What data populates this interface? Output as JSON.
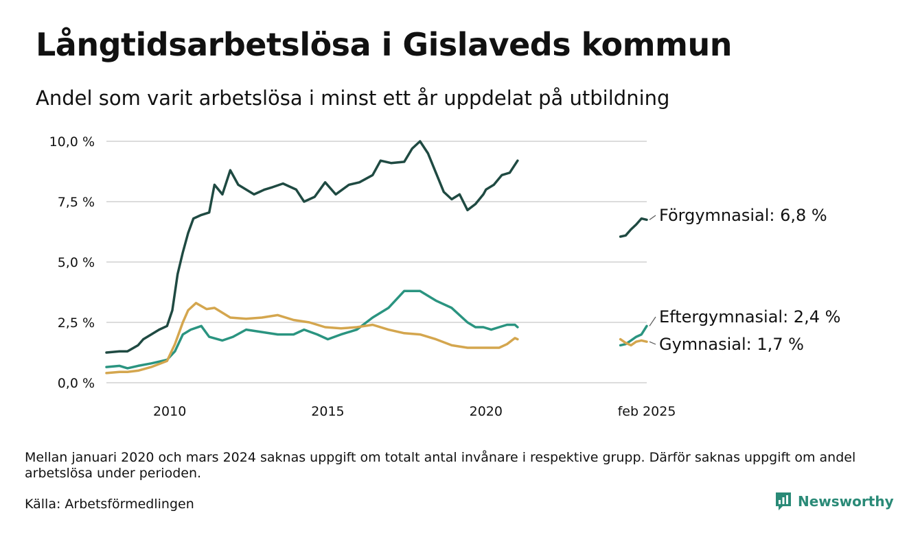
{
  "title": "Långtidsarbetslösa i Gislaveds kommun",
  "subtitle": "Andel som varit arbetslösa i minst ett år uppdelat på utbildning",
  "note": "Mellan januari 2020 och mars 2024 saknas uppgift om totalt antal invånare i respektive grupp. Därför saknas uppgift om andel arbetslösa under perioden.",
  "source": "Källa: Arbetsförmedlingen",
  "brand": {
    "name": "Newsworthy",
    "icon": "bar-chart-logo-icon",
    "color": "#2a8a77"
  },
  "chart_data": {
    "type": "line",
    "y_ticks": [
      "0,0 %",
      "2,5 %",
      "5,0 %",
      "7,5 %",
      "10,0 %"
    ],
    "y_tick_values": [
      0,
      2.5,
      5,
      7.5,
      10
    ],
    "x_ticks": [
      "2010",
      "2015",
      "2020",
      "feb 2025"
    ],
    "x_tick_values": [
      "2010-01",
      "2015-01",
      "2020-01",
      "2025-02"
    ],
    "x_range": [
      "2008-01",
      "2025-02"
    ],
    "ylim": [
      0,
      10
    ],
    "grid": "horizontal",
    "gap": "Mellan januari 2020 och mars 2024 saknas uppgift",
    "series": [
      {
        "name": "Förgymnasial",
        "end_label": "Förgymnasial: 6,8 %",
        "color": "#1f4a42",
        "points": [
          [
            "2008-01",
            1.25
          ],
          [
            "2008-06",
            1.3
          ],
          [
            "2008-09",
            1.3
          ],
          [
            "2009-01",
            1.55
          ],
          [
            "2009-03",
            1.8
          ],
          [
            "2009-06",
            2.0
          ],
          [
            "2009-09",
            2.2
          ],
          [
            "2009-12",
            2.35
          ],
          [
            "2010-02",
            3.0
          ],
          [
            "2010-04",
            4.5
          ],
          [
            "2010-06",
            5.4
          ],
          [
            "2010-08",
            6.2
          ],
          [
            "2010-10",
            6.8
          ],
          [
            "2011-01",
            6.95
          ],
          [
            "2011-04",
            7.05
          ],
          [
            "2011-06",
            8.2
          ],
          [
            "2011-09",
            7.8
          ],
          [
            "2011-12",
            8.8
          ],
          [
            "2012-03",
            8.2
          ],
          [
            "2012-06",
            8.0
          ],
          [
            "2012-09",
            7.8
          ],
          [
            "2013-01",
            8.0
          ],
          [
            "2013-04",
            8.1
          ],
          [
            "2013-08",
            8.25
          ],
          [
            "2014-01",
            8.0
          ],
          [
            "2014-04",
            7.5
          ],
          [
            "2014-08",
            7.7
          ],
          [
            "2014-12",
            8.3
          ],
          [
            "2015-04",
            7.8
          ],
          [
            "2015-09",
            8.2
          ],
          [
            "2016-01",
            8.3
          ],
          [
            "2016-06",
            8.6
          ],
          [
            "2016-09",
            9.2
          ],
          [
            "2017-01",
            9.1
          ],
          [
            "2017-06",
            9.15
          ],
          [
            "2017-09",
            9.7
          ],
          [
            "2017-12",
            10.0
          ],
          [
            "2018-03",
            9.5
          ],
          [
            "2018-06",
            8.7
          ],
          [
            "2018-09",
            7.9
          ],
          [
            "2018-12",
            7.6
          ],
          [
            "2019-03",
            7.8
          ],
          [
            "2019-06",
            7.15
          ],
          [
            "2019-09",
            7.4
          ],
          [
            "2019-12",
            7.8
          ],
          [
            "2020-01",
            8.0
          ],
          [
            "2020-04",
            8.2
          ],
          [
            "2020-07",
            8.6
          ],
          [
            "2020-10",
            8.7
          ],
          [
            "2021-01",
            9.2
          ],
          null,
          [
            "2024-04",
            6.05
          ],
          [
            "2024-06",
            6.1
          ],
          [
            "2024-08",
            6.35
          ],
          [
            "2024-10",
            6.55
          ],
          [
            "2024-12",
            6.8
          ],
          [
            "2025-02",
            6.75
          ]
        ]
      },
      {
        "name": "Eftergymnasial",
        "end_label": "Eftergymnasial: 2,4 %",
        "color": "#2a9480",
        "points": [
          [
            "2008-01",
            0.65
          ],
          [
            "2008-06",
            0.7
          ],
          [
            "2008-09",
            0.6
          ],
          [
            "2009-01",
            0.7
          ],
          [
            "2009-06",
            0.8
          ],
          [
            "2009-12",
            0.95
          ],
          [
            "2010-03",
            1.3
          ],
          [
            "2010-06",
            2.0
          ],
          [
            "2010-09",
            2.2
          ],
          [
            "2011-01",
            2.35
          ],
          [
            "2011-04",
            1.9
          ],
          [
            "2011-09",
            1.75
          ],
          [
            "2012-01",
            1.9
          ],
          [
            "2012-06",
            2.2
          ],
          [
            "2012-12",
            2.1
          ],
          [
            "2013-06",
            2.0
          ],
          [
            "2013-12",
            2.0
          ],
          [
            "2014-04",
            2.2
          ],
          [
            "2014-09",
            2.0
          ],
          [
            "2015-01",
            1.8
          ],
          [
            "2015-06",
            2.0
          ],
          [
            "2015-12",
            2.2
          ],
          [
            "2016-06",
            2.7
          ],
          [
            "2016-12",
            3.1
          ],
          [
            "2017-06",
            3.8
          ],
          [
            "2017-12",
            3.8
          ],
          [
            "2018-06",
            3.4
          ],
          [
            "2018-12",
            3.1
          ],
          [
            "2019-06",
            2.5
          ],
          [
            "2019-09",
            2.3
          ],
          [
            "2019-12",
            2.3
          ],
          [
            "2020-03",
            2.2
          ],
          [
            "2020-06",
            2.3
          ],
          [
            "2020-09",
            2.4
          ],
          [
            "2020-12",
            2.4
          ],
          [
            "2021-01",
            2.3
          ],
          null,
          [
            "2024-04",
            1.55
          ],
          [
            "2024-06",
            1.6
          ],
          [
            "2024-08",
            1.75
          ],
          [
            "2024-10",
            1.9
          ],
          [
            "2024-12",
            2.0
          ],
          [
            "2025-02",
            2.35
          ]
        ]
      },
      {
        "name": "Gymnasial",
        "end_label": "Gymnasial: 1,7 %",
        "color": "#d4a64e",
        "points": [
          [
            "2008-01",
            0.4
          ],
          [
            "2008-06",
            0.45
          ],
          [
            "2008-09",
            0.45
          ],
          [
            "2009-01",
            0.5
          ],
          [
            "2009-06",
            0.65
          ],
          [
            "2009-12",
            0.9
          ],
          [
            "2010-03",
            1.6
          ],
          [
            "2010-06",
            2.5
          ],
          [
            "2010-08",
            3.0
          ],
          [
            "2010-11",
            3.3
          ],
          [
            "2011-03",
            3.05
          ],
          [
            "2011-06",
            3.1
          ],
          [
            "2011-12",
            2.7
          ],
          [
            "2012-06",
            2.65
          ],
          [
            "2012-12",
            2.7
          ],
          [
            "2013-06",
            2.8
          ],
          [
            "2013-12",
            2.6
          ],
          [
            "2014-06",
            2.5
          ],
          [
            "2014-12",
            2.3
          ],
          [
            "2015-06",
            2.25
          ],
          [
            "2015-12",
            2.3
          ],
          [
            "2016-06",
            2.4
          ],
          [
            "2016-12",
            2.2
          ],
          [
            "2017-06",
            2.05
          ],
          [
            "2017-12",
            2.0
          ],
          [
            "2018-06",
            1.8
          ],
          [
            "2018-12",
            1.55
          ],
          [
            "2019-06",
            1.45
          ],
          [
            "2019-12",
            1.45
          ],
          [
            "2020-03",
            1.45
          ],
          [
            "2020-06",
            1.45
          ],
          [
            "2020-09",
            1.6
          ],
          [
            "2020-12",
            1.85
          ],
          [
            "2021-01",
            1.8
          ],
          null,
          [
            "2024-04",
            1.8
          ],
          [
            "2024-06",
            1.65
          ],
          [
            "2024-08",
            1.55
          ],
          [
            "2024-10",
            1.7
          ],
          [
            "2024-12",
            1.75
          ],
          [
            "2025-02",
            1.7
          ]
        ]
      }
    ]
  }
}
